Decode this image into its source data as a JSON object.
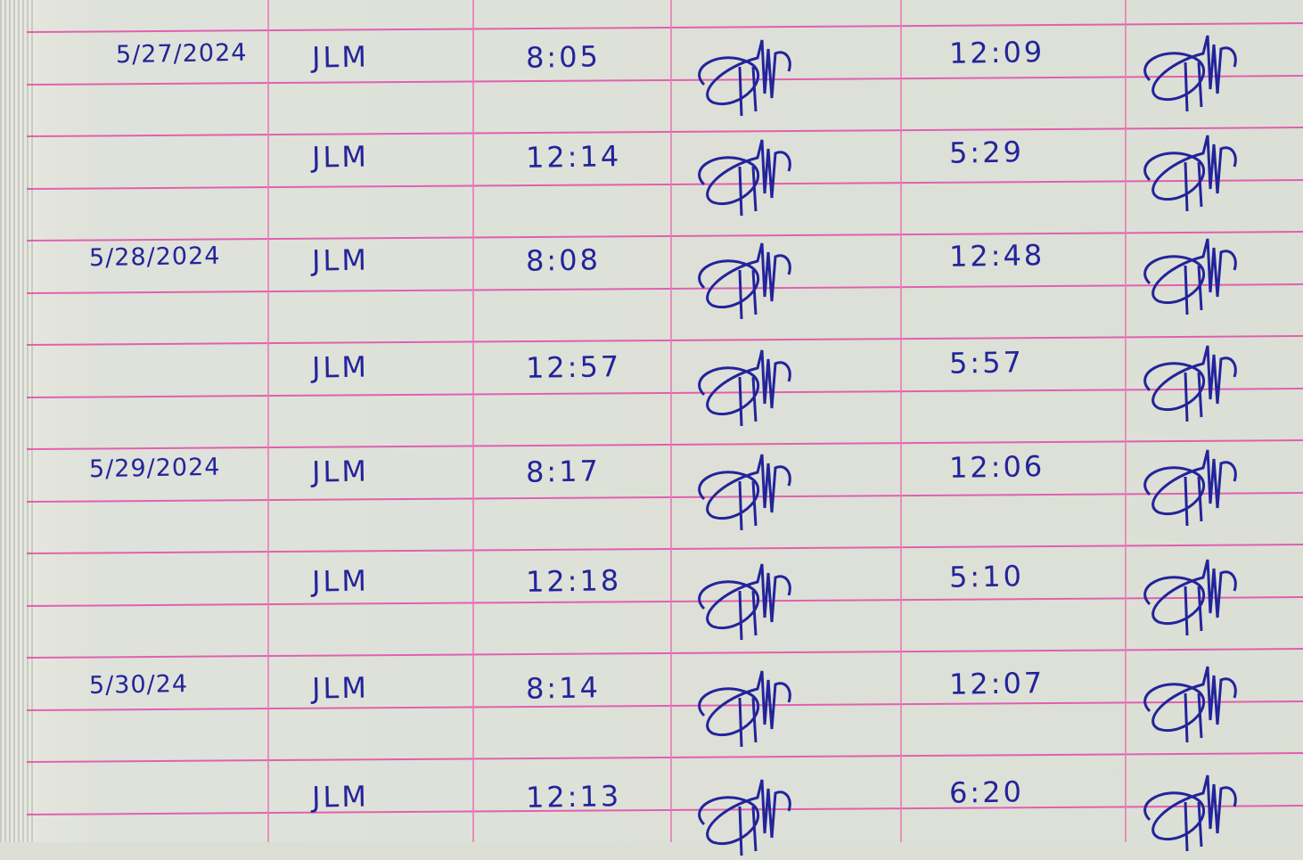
{
  "ink_color": "#23249a",
  "rule_color": "#e04aa8",
  "rows": [
    {
      "date": "5/27/2024",
      "initials": "JLM",
      "time_in": "8:05",
      "time_out": "12:09"
    },
    {
      "date": "",
      "initials": "JLM",
      "time_in": "12:14",
      "time_out": "5:29"
    },
    {
      "date": "5/28/2024",
      "initials": "JLM",
      "time_in": "8:08",
      "time_out": "12:48"
    },
    {
      "date": "",
      "initials": "JLM",
      "time_in": "12:57",
      "time_out": "5:57"
    },
    {
      "date": "5/29/2024",
      "initials": "JLM",
      "time_in": "8:17",
      "time_out": "12:06"
    },
    {
      "date": "",
      "initials": "JLM",
      "time_in": "12:18",
      "time_out": "5:10"
    },
    {
      "date": "5/30/24",
      "initials": "JLM",
      "time_in": "8:14",
      "time_out": "12:07"
    },
    {
      "date": "",
      "initials": "JLM",
      "time_in": "12:13",
      "time_out": "6:20"
    }
  ]
}
